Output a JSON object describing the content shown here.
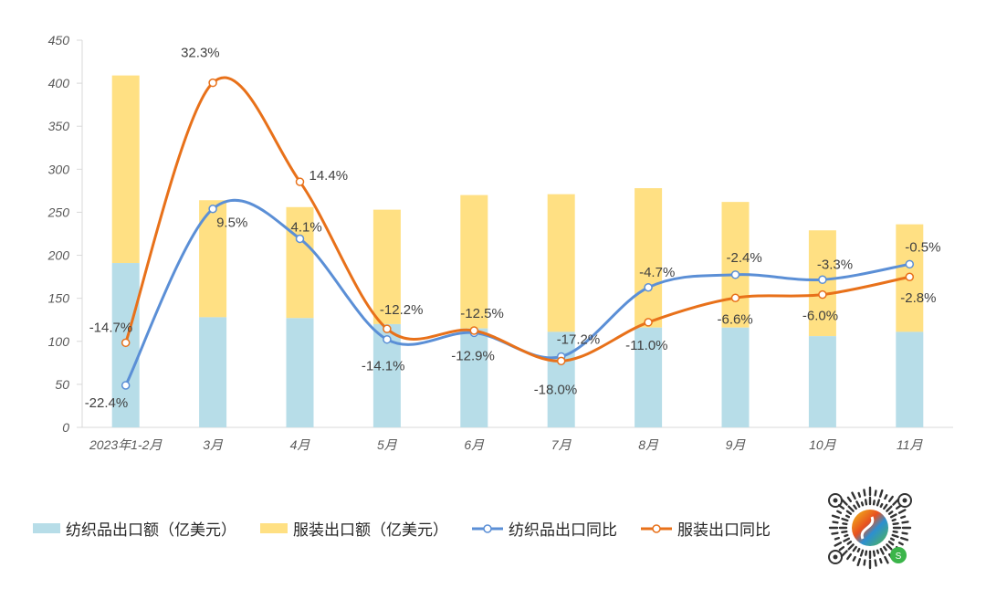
{
  "chart_data": {
    "type": "bar",
    "categories": [
      "2023年1-2月",
      "3月",
      "4月",
      "5月",
      "6月",
      "7月",
      "8月",
      "9月",
      "10月",
      "11月"
    ],
    "ylim": [
      0,
      450
    ],
    "yticks": [
      0,
      50,
      100,
      150,
      200,
      250,
      300,
      350,
      400,
      450
    ],
    "y2lim": [
      -30,
      40
    ],
    "grid": false,
    "legend_position": "bottom",
    "series": [
      {
        "name": "纺织品出口额（亿美元）",
        "kind": "bar",
        "color": "#b7dde8",
        "values": [
          191,
          128,
          127,
          120,
          115,
          111,
          116,
          116,
          106,
          111
        ]
      },
      {
        "name": "服装出口额（亿美元）",
        "kind": "bar",
        "color": "#ffe083",
        "stack_totals": [
          409,
          264,
          256,
          253,
          270,
          271,
          278,
          262,
          229,
          236
        ],
        "values": [
          218,
          136,
          129,
          133,
          155,
          160,
          162,
          146,
          123,
          125
        ]
      },
      {
        "name": "纺织品出口同比",
        "kind": "line",
        "axis": "secondary",
        "color": "#5b8fd6",
        "values": [
          -22.4,
          9.5,
          4.1,
          -14.1,
          -12.9,
          -17.2,
          -4.7,
          -2.4,
          -3.3,
          -0.5
        ],
        "labels": [
          "-22.4%",
          "9.5%",
          "4.1%",
          "-14.1%",
          "-12.9%",
          "-17.2%",
          "-4.7%",
          "-2.4%",
          "-3.3%",
          "-0.5%"
        ]
      },
      {
        "name": "服装出口同比",
        "kind": "line",
        "axis": "secondary",
        "color": "#e8711a",
        "values": [
          -14.7,
          32.3,
          14.4,
          -12.2,
          -12.5,
          -18.0,
          -11.0,
          -6.6,
          -6.0,
          -2.8
        ],
        "labels": [
          "-14.7%",
          "32.3%",
          "14.4%",
          "-12.2%",
          "-12.5%",
          "-18.0%",
          "-11.0%",
          "-6.6%",
          "-6.0%",
          "-2.8%"
        ]
      }
    ]
  }
}
